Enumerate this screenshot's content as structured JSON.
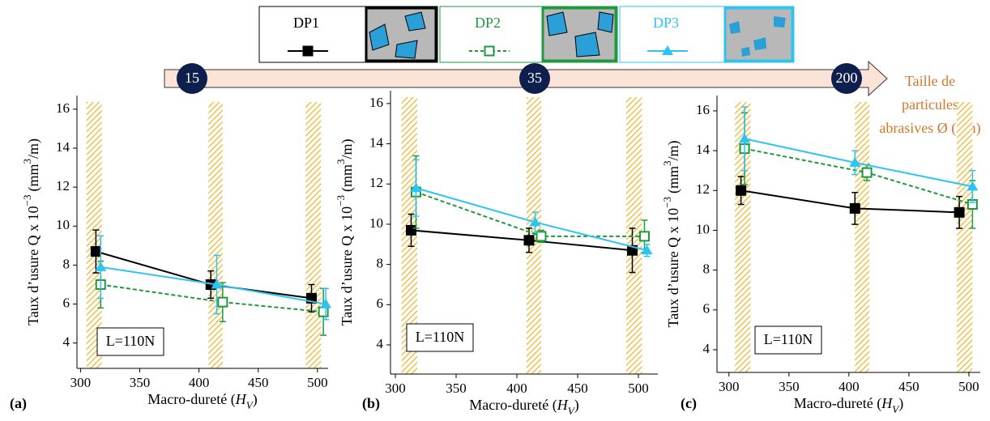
{
  "legend_title": null,
  "particle_size": {
    "ticks": [
      15,
      35,
      200
    ],
    "label": [
      "Taille de",
      "particules",
      "abrasives Ø (µm)"
    ]
  },
  "chart_data": [
    {
      "type": "line",
      "panel": "(a)",
      "annotation": "L=110N",
      "xlabel": [
        "Macro-dureté (",
        "H",
        "V",
        ")"
      ],
      "ylabel": [
        "Taux d’usure Q x 10",
        "−3",
        "(mm",
        "3",
        "/m)"
      ],
      "xlim": [
        297,
        509
      ],
      "ylim": [
        2.7,
        16.7
      ],
      "xticks": [
        300,
        350,
        400,
        450,
        500
      ],
      "yticks": [
        4,
        6,
        8,
        10,
        12,
        14,
        16
      ],
      "bands": [
        [
          305,
          318
        ],
        [
          408,
          420
        ],
        [
          490,
          503
        ]
      ],
      "series": [
        {
          "name": "DP1",
          "color": "#000000",
          "marker": "square",
          "dash": false,
          "x": [
            313,
            410,
            495
          ],
          "values": [
            8.7,
            7.0,
            6.3
          ],
          "errors": [
            1.1,
            0.7,
            0.7
          ]
        },
        {
          "name": "DP2",
          "color": "#1e9a3c",
          "marker": "open-square",
          "dash": true,
          "x": [
            317,
            420,
            505
          ],
          "values": [
            7.0,
            6.1,
            5.6
          ],
          "errors": [
            1.2,
            1.0,
            1.2
          ]
        },
        {
          "name": "DP3",
          "color": "#2ec4f2",
          "marker": "triangle",
          "dash": false,
          "x": [
            317,
            415,
            507
          ],
          "values": [
            7.9,
            7.0,
            6.0
          ],
          "errors": [
            1.6,
            1.5,
            0.8
          ]
        }
      ]
    },
    {
      "type": "line",
      "panel": "(b)",
      "annotation": "L=110N",
      "xlabel": [
        "Macro-dureté (",
        "H",
        "V",
        ")"
      ],
      "ylabel": [
        "Taux d’usure Q x 10",
        "−3",
        "(mm",
        "3",
        "/m)"
      ],
      "xlim": [
        296,
        516
      ],
      "ylim": [
        2.55,
        16.64
      ],
      "xticks": [
        300,
        350,
        400,
        450,
        500
      ],
      "yticks": [
        4,
        6,
        8,
        10,
        12,
        14,
        16
      ],
      "bands": [
        [
          305,
          318
        ],
        [
          408,
          420
        ],
        [
          490,
          503
        ]
      ],
      "series": [
        {
          "name": "DP1",
          "color": "#000000",
          "marker": "square",
          "dash": false,
          "x": [
            313,
            410,
            495
          ],
          "values": [
            9.7,
            9.2,
            8.7
          ],
          "errors": [
            0.8,
            0.6,
            1.1
          ]
        },
        {
          "name": "DP2",
          "color": "#1e9a3c",
          "marker": "open-square",
          "dash": true,
          "x": [
            317,
            420,
            505
          ],
          "values": [
            11.6,
            9.4,
            9.4
          ],
          "errors": [
            1.8,
            0.3,
            0.8
          ]
        },
        {
          "name": "DP3",
          "color": "#2ec4f2",
          "marker": "triangle",
          "dash": false,
          "x": [
            317,
            415,
            507
          ],
          "values": [
            11.8,
            10.1,
            8.7
          ],
          "errors": [
            1.4,
            0.5,
            0.3
          ]
        }
      ]
    },
    {
      "type": "line",
      "panel": "(c)",
      "annotation": "L=110N",
      "xlabel": [
        "Macro-dureté (",
        "H",
        "V",
        ")"
      ],
      "ylabel": [
        "Taux d’usure Q x 10",
        "−3",
        "(mm",
        "3",
        "/m)"
      ],
      "xlim": [
        290,
        509.5
      ],
      "ylim": [
        2.86,
        16.77
      ],
      "xticks": [
        300,
        350,
        400,
        450,
        500
      ],
      "yticks": [
        4,
        6,
        8,
        10,
        12,
        14,
        16
      ],
      "bands": [
        [
          305,
          318
        ],
        [
          405,
          417
        ],
        [
          490,
          503
        ]
      ],
      "series": [
        {
          "name": "DP1",
          "color": "#000000",
          "marker": "square",
          "dash": false,
          "x": [
            310,
            405,
            492
          ],
          "values": [
            12.0,
            11.1,
            10.9
          ],
          "errors": [
            0.7,
            0.8,
            0.8
          ]
        },
        {
          "name": "DP2",
          "color": "#1e9a3c",
          "marker": "open-square",
          "dash": true,
          "x": [
            313,
            415,
            503
          ],
          "values": [
            14.1,
            12.9,
            11.3
          ],
          "errors": [
            1.8,
            0.4,
            1.2
          ]
        },
        {
          "name": "DP3",
          "color": "#2ec4f2",
          "marker": "triangle",
          "dash": false,
          "x": [
            313,
            405,
            503
          ],
          "values": [
            14.6,
            13.4,
            12.2
          ],
          "errors": [
            1.6,
            0.6,
            0.8
          ]
        }
      ]
    }
  ]
}
